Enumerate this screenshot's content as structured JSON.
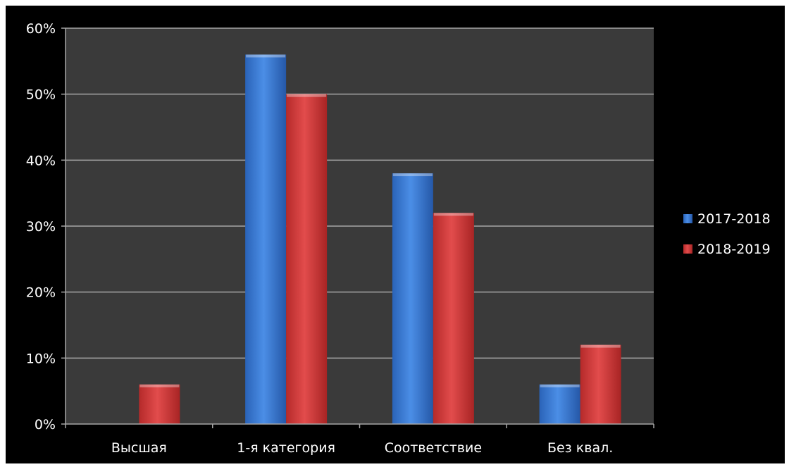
{
  "chart_data": {
    "type": "bar",
    "title": "",
    "xlabel": "",
    "ylabel": "",
    "categories": [
      "Высшая",
      "1-я категория",
      "Соответствие",
      "Без квал."
    ],
    "series": [
      {
        "name": "2017-2018",
        "values": [
          0,
          56,
          38,
          6
        ],
        "color": "#3a7bd5"
      },
      {
        "name": "2018-2019",
        "values": [
          6,
          50,
          32,
          12
        ],
        "color": "#d73b3b"
      }
    ],
    "ylim": [
      0,
      60
    ],
    "yticks": [
      "0%",
      "10%",
      "20%",
      "30%",
      "40%",
      "50%",
      "60%"
    ],
    "grid": true,
    "legend": "right",
    "colors": {
      "frame_background": "#000000",
      "plot_background": "#3a3a3a",
      "gridline": "#a6a6a6",
      "text": "#ffffff"
    }
  }
}
